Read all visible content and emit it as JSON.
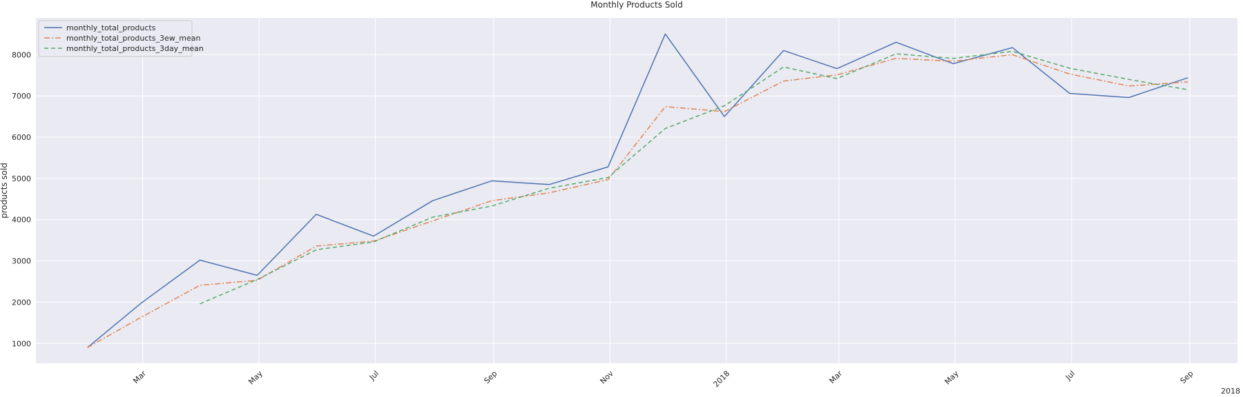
{
  "chart_data": {
    "type": "line",
    "title": "Monthly Products Sold",
    "xlabel": "",
    "ylabel": "products sold",
    "x": [
      "2017-01-31",
      "2017-02-28",
      "2017-03-31",
      "2017-04-30",
      "2017-05-31",
      "2017-06-30",
      "2017-07-31",
      "2017-08-31",
      "2017-09-30",
      "2017-10-31",
      "2017-11-30",
      "2017-12-31",
      "2018-01-31",
      "2018-02-28",
      "2018-03-31",
      "2018-04-30",
      "2018-05-31",
      "2018-06-30",
      "2018-07-31",
      "2018-08-31"
    ],
    "series": [
      {
        "name": "monthly_total_products",
        "color": "#4c72b0",
        "dash": "solid",
        "values": [
          900,
          1970,
          3020,
          2650,
          4130,
          3600,
          4460,
          4940,
          4850,
          5280,
          8500,
          6500,
          8100,
          7660,
          8300,
          7780,
          8170,
          7060,
          6960,
          7440
        ]
      },
      {
        "name": "monthly_total_products_3ew_mean",
        "color": "#dd8452",
        "dash": "dashdot",
        "values": [
          900,
          1630,
          2410,
          2530,
          3360,
          3480,
          3970,
          4460,
          4650,
          4970,
          6740,
          6620,
          7360,
          7510,
          7910,
          7840,
          8000,
          7530,
          7240,
          7340
        ]
      },
      {
        "name": "monthly_total_products_3day_mean",
        "color": "#55a868",
        "dash": "dashed",
        "values": [
          null,
          null,
          1960,
          2550,
          3270,
          3460,
          4060,
          4330,
          4760,
          5020,
          6210,
          6760,
          7700,
          7420,
          8020,
          7910,
          8080,
          7670,
          7400,
          7150
        ]
      }
    ],
    "x_tick_labels": [
      "Mar",
      "May",
      "Jul",
      "Sep",
      "Nov",
      "2018",
      "Mar",
      "May",
      "Jul",
      "Sep"
    ],
    "x_offset_label": "2018",
    "y_ticks": [
      1000,
      2000,
      3000,
      4000,
      5000,
      6000,
      7000,
      8000
    ],
    "ylim": [
      520,
      8890
    ],
    "xlim": [
      "2017-01-04",
      "2018-09-26"
    ],
    "grid": true,
    "legend_position": "upper-left",
    "background": "#eaeaf2"
  }
}
